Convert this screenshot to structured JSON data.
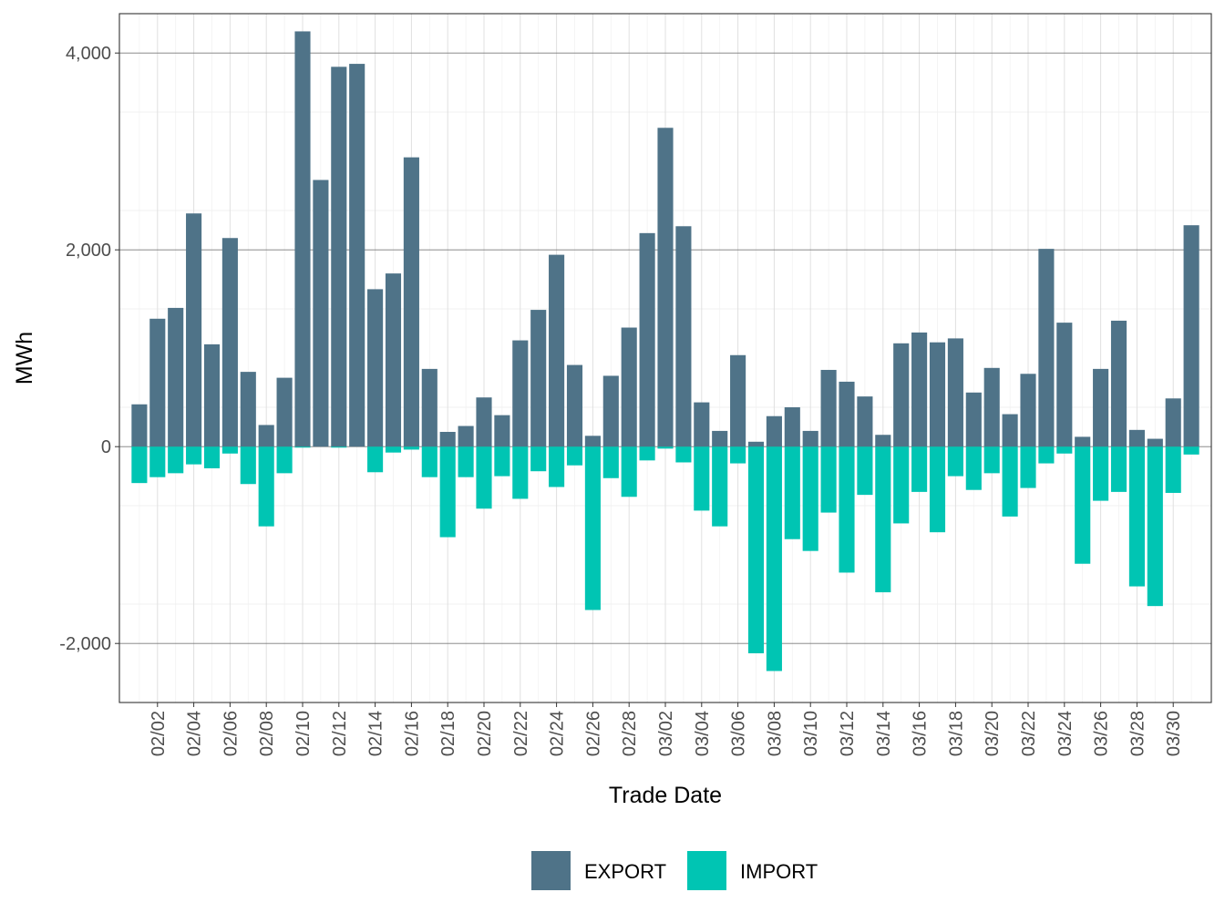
{
  "chart_data": {
    "type": "bar",
    "xlabel": "Trade Date",
    "ylabel": "MWh",
    "ylim": [
      -2600,
      4400
    ],
    "y_ticks": [
      -2000,
      0,
      2000,
      4000
    ],
    "y_tick_labels": [
      "-2,000",
      "0",
      "2,000",
      "4,000"
    ],
    "grid": true,
    "legend_position": "bottom",
    "x_tick_labels": [
      "02/02",
      "02/04",
      "02/06",
      "02/08",
      "02/10",
      "02/12",
      "02/14",
      "02/16",
      "02/18",
      "02/20",
      "02/22",
      "02/24",
      "02/26",
      "02/28",
      "03/02",
      "03/04",
      "03/06",
      "03/08",
      "03/10",
      "03/12",
      "03/14",
      "03/16",
      "03/18",
      "03/20",
      "03/22",
      "03/24",
      "03/26",
      "03/28",
      "03/30"
    ],
    "categories": [
      "02/01",
      "02/02",
      "02/03",
      "02/04",
      "02/05",
      "02/06",
      "02/07",
      "02/08",
      "02/09",
      "02/10",
      "02/11",
      "02/12",
      "02/13",
      "02/14",
      "02/15",
      "02/16",
      "02/17",
      "02/18",
      "02/19",
      "02/20",
      "02/21",
      "02/22",
      "02/23",
      "02/24",
      "02/25",
      "02/26",
      "02/27",
      "02/28",
      "03/01",
      "03/02",
      "03/03",
      "03/04",
      "03/05",
      "03/06",
      "03/07",
      "03/08",
      "03/09",
      "03/10",
      "03/11",
      "03/12",
      "03/13",
      "03/14",
      "03/15",
      "03/16",
      "03/17",
      "03/18",
      "03/19",
      "03/20",
      "03/21",
      "03/22",
      "03/23",
      "03/24",
      "03/25",
      "03/26",
      "03/27",
      "03/28",
      "03/29",
      "03/30",
      "03/31"
    ],
    "series": [
      {
        "name": "EXPORT",
        "color": "#4f7388",
        "values": [
          430,
          1300,
          1410,
          2370,
          1040,
          2120,
          760,
          220,
          700,
          4220,
          2710,
          3860,
          3890,
          1600,
          1760,
          2940,
          790,
          150,
          210,
          500,
          320,
          1080,
          1390,
          1950,
          830,
          110,
          720,
          1210,
          2170,
          3240,
          2240,
          450,
          160,
          930,
          50,
          310,
          400,
          160,
          780,
          660,
          510,
          120,
          1050,
          1160,
          1060,
          1100,
          550,
          800,
          330,
          740,
          2010,
          1260,
          100,
          790,
          1280,
          170,
          80,
          490,
          2250
        ]
      },
      {
        "name": "IMPORT",
        "color": "#00c5b3",
        "values": [
          -370,
          -310,
          -270,
          -180,
          -220,
          -70,
          -380,
          -810,
          -270,
          -10,
          0,
          -10,
          0,
          -260,
          -60,
          -30,
          -310,
          -920,
          -310,
          -630,
          -300,
          -530,
          -250,
          -410,
          -190,
          -1660,
          -320,
          -510,
          -140,
          -20,
          -160,
          -650,
          -810,
          -170,
          -2100,
          -2280,
          -940,
          -1060,
          -670,
          -1280,
          -490,
          -1480,
          -780,
          -460,
          -870,
          -300,
          -440,
          -270,
          -710,
          -420,
          -170,
          -70,
          -1190,
          -550,
          -460,
          -1420,
          -1620,
          -470,
          -80
        ]
      }
    ]
  }
}
